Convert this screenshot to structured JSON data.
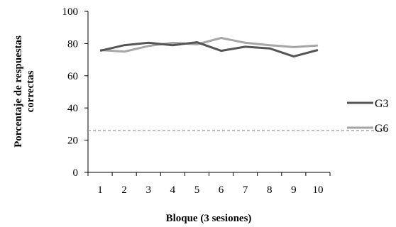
{
  "chart_data": {
    "type": "line",
    "categories": [
      "1",
      "2",
      "3",
      "4",
      "5",
      "6",
      "7",
      "8",
      "9",
      "10"
    ],
    "series": [
      {
        "name": "G3",
        "color": "#555555",
        "values": [
          75.5,
          79,
          80.5,
          79,
          80.8,
          75.5,
          78,
          77,
          72,
          76
        ]
      },
      {
        "name": "G6",
        "color": "#a6a6a6",
        "values": [
          76,
          75,
          78.5,
          80.5,
          79.5,
          83.5,
          80.5,
          79,
          77.8,
          78.8
        ]
      }
    ],
    "reference_line": {
      "value": 26,
      "style": "dashed",
      "color": "#999999"
    },
    "xlabel": "Bloque (3 sesiones)",
    "ylabel_line1": "Porcentaje de respuestas",
    "ylabel_line2": "correctas",
    "ylim": [
      0,
      100
    ],
    "yticks": [
      0,
      20,
      40,
      60,
      80,
      100
    ],
    "grid": false,
    "legend_position": "right"
  }
}
